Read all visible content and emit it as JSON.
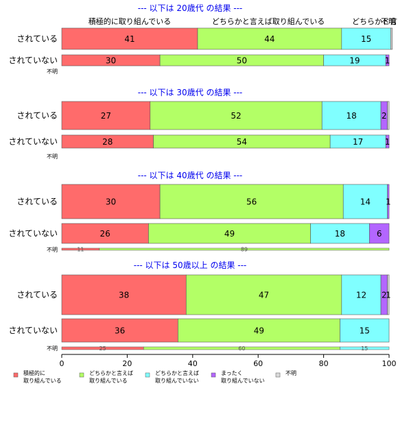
{
  "chart_data": {
    "type": "bar",
    "orientation": "horizontal",
    "stacked": true,
    "xlim": [
      0,
      100
    ],
    "x_ticks": [
      0,
      20,
      40,
      60,
      80,
      100
    ],
    "categories_order": [
      "積極的に取り組んでいる",
      "どちらかと言えば取り組んでいる",
      "どちらかと言えば取り組んでいない",
      "まったく取り組んでいない",
      "不明"
    ],
    "category_colors": [
      "#FF6B6B",
      "#B3FF66",
      "#80FFFF",
      "#B366FF",
      "#D9D9D9"
    ],
    "top_header_labels": [
      "積極的に取り組んでいる",
      "どちらかと言えば取り組んでいる",
      "どちらかと言",
      "不明"
    ],
    "legend": [
      {
        "line1": "積極的に",
        "line2": "取り組んでいる"
      },
      {
        "line1": "どちらかと言えば",
        "line2": "取り組んでいる"
      },
      {
        "line1": "どちらかと言えば",
        "line2": "取り組んでいない"
      },
      {
        "line1": "まったく",
        "line2": "取り組んでいない"
      },
      {
        "line1": "不明",
        "line2": ""
      }
    ],
    "panels": [
      {
        "title": "--- 以下は 20歳代 の結果 ---",
        "rows": [
          {
            "label": "されている",
            "values": [
              41.5,
              44,
              15,
              0,
              0.5
            ],
            "labels": [
              "41",
              "44",
              "15",
              "",
              ""
            ]
          },
          {
            "label": "されていない",
            "values": [
              30,
              50,
              19,
              1,
              0
            ],
            "labels": [
              "30",
              "50",
              "19",
              "1",
              ""
            ]
          }
        ],
        "fumei_label": "不明",
        "fumei_values": [],
        "fumei_labels": []
      },
      {
        "title": "--- 以下は 30歳代 の結果 ---",
        "rows": [
          {
            "label": "されている",
            "values": [
              27,
              52.5,
              18,
              2,
              0.5
            ],
            "labels": [
              "27",
              "52",
              "18",
              "2",
              ""
            ]
          },
          {
            "label": "されていない",
            "values": [
              28,
              54,
              17,
              1,
              0
            ],
            "labels": [
              "28",
              "54",
              "17",
              "1",
              ""
            ]
          }
        ],
        "fumei_label": "不明",
        "fumei_values": [],
        "fumei_labels": []
      },
      {
        "title": "--- 以下は 40歳代 の結果 ---",
        "rows": [
          {
            "label": "されている",
            "values": [
              30,
              56,
              13.5,
              0.5,
              0
            ],
            "labels": [
              "30",
              "56",
              "14",
              "1",
              ""
            ]
          },
          {
            "label": "されていない",
            "values": [
              26.5,
              49.5,
              18,
              6,
              0
            ],
            "labels": [
              "26",
              "49",
              "18",
              "6",
              ""
            ]
          }
        ],
        "fumei_label": "不明",
        "fumei_values": [
          11.5,
          88.5,
          0,
          0,
          0
        ],
        "fumei_labels": [
          "11",
          "89",
          "",
          "",
          ""
        ]
      },
      {
        "title": "--- 以下は 50歳以上 の結果 ---",
        "rows": [
          {
            "label": "されている",
            "values": [
              38,
              47.5,
              12,
              2,
              0.5
            ],
            "labels": [
              "38",
              "47",
              "12",
              "2",
              "1"
            ]
          },
          {
            "label": "されていない",
            "values": [
              35.5,
              49.5,
              15,
              0,
              0
            ],
            "labels": [
              "36",
              "49",
              "15",
              "",
              ""
            ]
          }
        ],
        "fumei_label": "不明",
        "fumei_values": [
          25,
          60,
          15,
          0,
          0
        ],
        "fumei_labels": [
          "25",
          "60",
          "15",
          "",
          ""
        ]
      }
    ]
  }
}
